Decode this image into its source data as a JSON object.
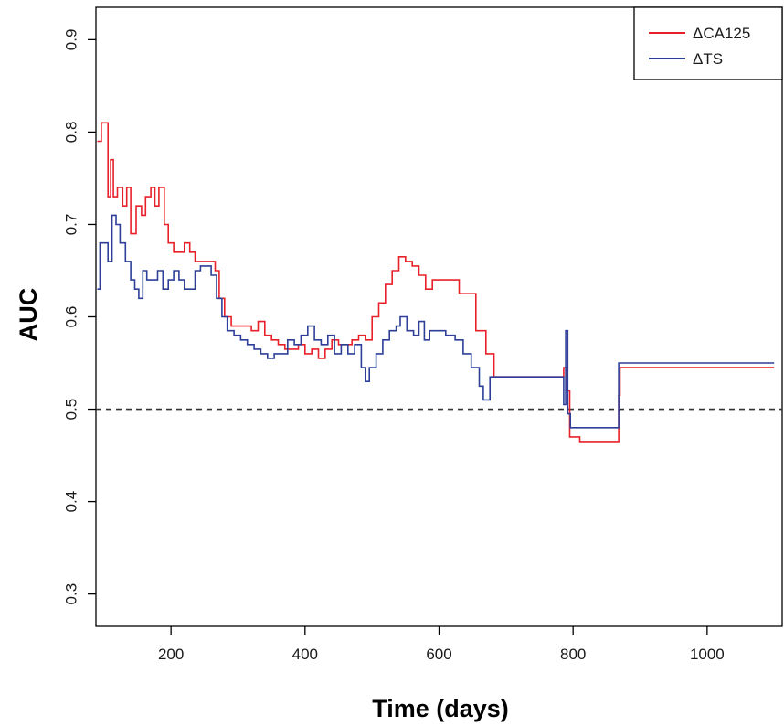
{
  "chart_data": {
    "type": "line",
    "title": "",
    "xlabel": "Time (days)",
    "ylabel": "AUC",
    "xlim": [
      88,
      1112
    ],
    "ylim": [
      0.265,
      0.935
    ],
    "xticks": [
      200,
      400,
      600,
      800,
      1000
    ],
    "yticks": [
      0.3,
      0.4,
      0.5,
      0.6,
      0.7,
      0.8,
      0.9
    ],
    "grid": false,
    "legend_position": "top-right",
    "reference_line": {
      "y": 0.5,
      "style": "dashed",
      "color": "#333333"
    },
    "series": [
      {
        "name": "ΔCA125",
        "color": "#e8202a",
        "points": [
          [
            90,
            0.79
          ],
          [
            96,
            0.81
          ],
          [
            104,
            0.81
          ],
          [
            106,
            0.73
          ],
          [
            110,
            0.77
          ],
          [
            114,
            0.73
          ],
          [
            120,
            0.74
          ],
          [
            128,
            0.72
          ],
          [
            134,
            0.74
          ],
          [
            140,
            0.69
          ],
          [
            148,
            0.72
          ],
          [
            156,
            0.71
          ],
          [
            162,
            0.73
          ],
          [
            170,
            0.74
          ],
          [
            176,
            0.72
          ],
          [
            182,
            0.74
          ],
          [
            190,
            0.7
          ],
          [
            196,
            0.68
          ],
          [
            204,
            0.67
          ],
          [
            212,
            0.67
          ],
          [
            220,
            0.68
          ],
          [
            228,
            0.67
          ],
          [
            236,
            0.66
          ],
          [
            244,
            0.66
          ],
          [
            252,
            0.66
          ],
          [
            260,
            0.66
          ],
          [
            266,
            0.65
          ],
          [
            272,
            0.62
          ],
          [
            280,
            0.6
          ],
          [
            290,
            0.59
          ],
          [
            300,
            0.59
          ],
          [
            310,
            0.59
          ],
          [
            320,
            0.585
          ],
          [
            330,
            0.595
          ],
          [
            340,
            0.58
          ],
          [
            350,
            0.575
          ],
          [
            360,
            0.57
          ],
          [
            370,
            0.565
          ],
          [
            380,
            0.565
          ],
          [
            390,
            0.57
          ],
          [
            400,
            0.56
          ],
          [
            410,
            0.565
          ],
          [
            420,
            0.555
          ],
          [
            430,
            0.565
          ],
          [
            440,
            0.575
          ],
          [
            450,
            0.57
          ],
          [
            460,
            0.57
          ],
          [
            470,
            0.575
          ],
          [
            480,
            0.58
          ],
          [
            490,
            0.575
          ],
          [
            500,
            0.6
          ],
          [
            510,
            0.615
          ],
          [
            520,
            0.635
          ],
          [
            530,
            0.65
          ],
          [
            540,
            0.665
          ],
          [
            550,
            0.66
          ],
          [
            560,
            0.655
          ],
          [
            570,
            0.645
          ],
          [
            580,
            0.63
          ],
          [
            590,
            0.64
          ],
          [
            600,
            0.64
          ],
          [
            615,
            0.64
          ],
          [
            630,
            0.625
          ],
          [
            645,
            0.625
          ],
          [
            655,
            0.585
          ],
          [
            670,
            0.56
          ],
          [
            682,
            0.535
          ],
          [
            700,
            0.535
          ],
          [
            740,
            0.535
          ],
          [
            780,
            0.535
          ],
          [
            786,
            0.545
          ],
          [
            790,
            0.52
          ],
          [
            795,
            0.47
          ],
          [
            810,
            0.465
          ],
          [
            840,
            0.465
          ],
          [
            866,
            0.465
          ],
          [
            868,
            0.515
          ],
          [
            870,
            0.545
          ],
          [
            950,
            0.545
          ],
          [
            1050,
            0.545
          ],
          [
            1100,
            0.545
          ]
        ]
      },
      {
        "name": "ΔTS",
        "color": "#2e3f99",
        "points": [
          [
            90,
            0.63
          ],
          [
            94,
            0.68
          ],
          [
            100,
            0.68
          ],
          [
            106,
            0.66
          ],
          [
            112,
            0.71
          ],
          [
            118,
            0.7
          ],
          [
            124,
            0.68
          ],
          [
            132,
            0.66
          ],
          [
            140,
            0.64
          ],
          [
            146,
            0.63
          ],
          [
            152,
            0.62
          ],
          [
            158,
            0.65
          ],
          [
            164,
            0.64
          ],
          [
            172,
            0.64
          ],
          [
            180,
            0.65
          ],
          [
            188,
            0.63
          ],
          [
            196,
            0.64
          ],
          [
            204,
            0.65
          ],
          [
            212,
            0.64
          ],
          [
            220,
            0.63
          ],
          [
            228,
            0.63
          ],
          [
            236,
            0.65
          ],
          [
            244,
            0.655
          ],
          [
            252,
            0.655
          ],
          [
            260,
            0.645
          ],
          [
            268,
            0.62
          ],
          [
            276,
            0.6
          ],
          [
            284,
            0.585
          ],
          [
            294,
            0.58
          ],
          [
            304,
            0.575
          ],
          [
            314,
            0.57
          ],
          [
            324,
            0.565
          ],
          [
            334,
            0.56
          ],
          [
            344,
            0.555
          ],
          [
            354,
            0.56
          ],
          [
            364,
            0.56
          ],
          [
            374,
            0.575
          ],
          [
            384,
            0.57
          ],
          [
            394,
            0.58
          ],
          [
            404,
            0.59
          ],
          [
            414,
            0.575
          ],
          [
            424,
            0.57
          ],
          [
            434,
            0.58
          ],
          [
            444,
            0.56
          ],
          [
            454,
            0.57
          ],
          [
            464,
            0.56
          ],
          [
            474,
            0.57
          ],
          [
            484,
            0.545
          ],
          [
            490,
            0.53
          ],
          [
            496,
            0.545
          ],
          [
            506,
            0.56
          ],
          [
            516,
            0.575
          ],
          [
            526,
            0.585
          ],
          [
            536,
            0.59
          ],
          [
            542,
            0.6
          ],
          [
            552,
            0.585
          ],
          [
            562,
            0.58
          ],
          [
            570,
            0.595
          ],
          [
            578,
            0.575
          ],
          [
            586,
            0.585
          ],
          [
            596,
            0.585
          ],
          [
            610,
            0.58
          ],
          [
            624,
            0.575
          ],
          [
            636,
            0.56
          ],
          [
            648,
            0.545
          ],
          [
            660,
            0.525
          ],
          [
            666,
            0.51
          ],
          [
            676,
            0.535
          ],
          [
            700,
            0.535
          ],
          [
            740,
            0.535
          ],
          [
            782,
            0.535
          ],
          [
            786,
            0.505
          ],
          [
            789,
            0.585
          ],
          [
            792,
            0.495
          ],
          [
            796,
            0.48
          ],
          [
            820,
            0.48
          ],
          [
            850,
            0.48
          ],
          [
            866,
            0.48
          ],
          [
            868,
            0.55
          ],
          [
            950,
            0.55
          ],
          [
            1050,
            0.55
          ],
          [
            1100,
            0.55
          ]
        ]
      }
    ]
  }
}
